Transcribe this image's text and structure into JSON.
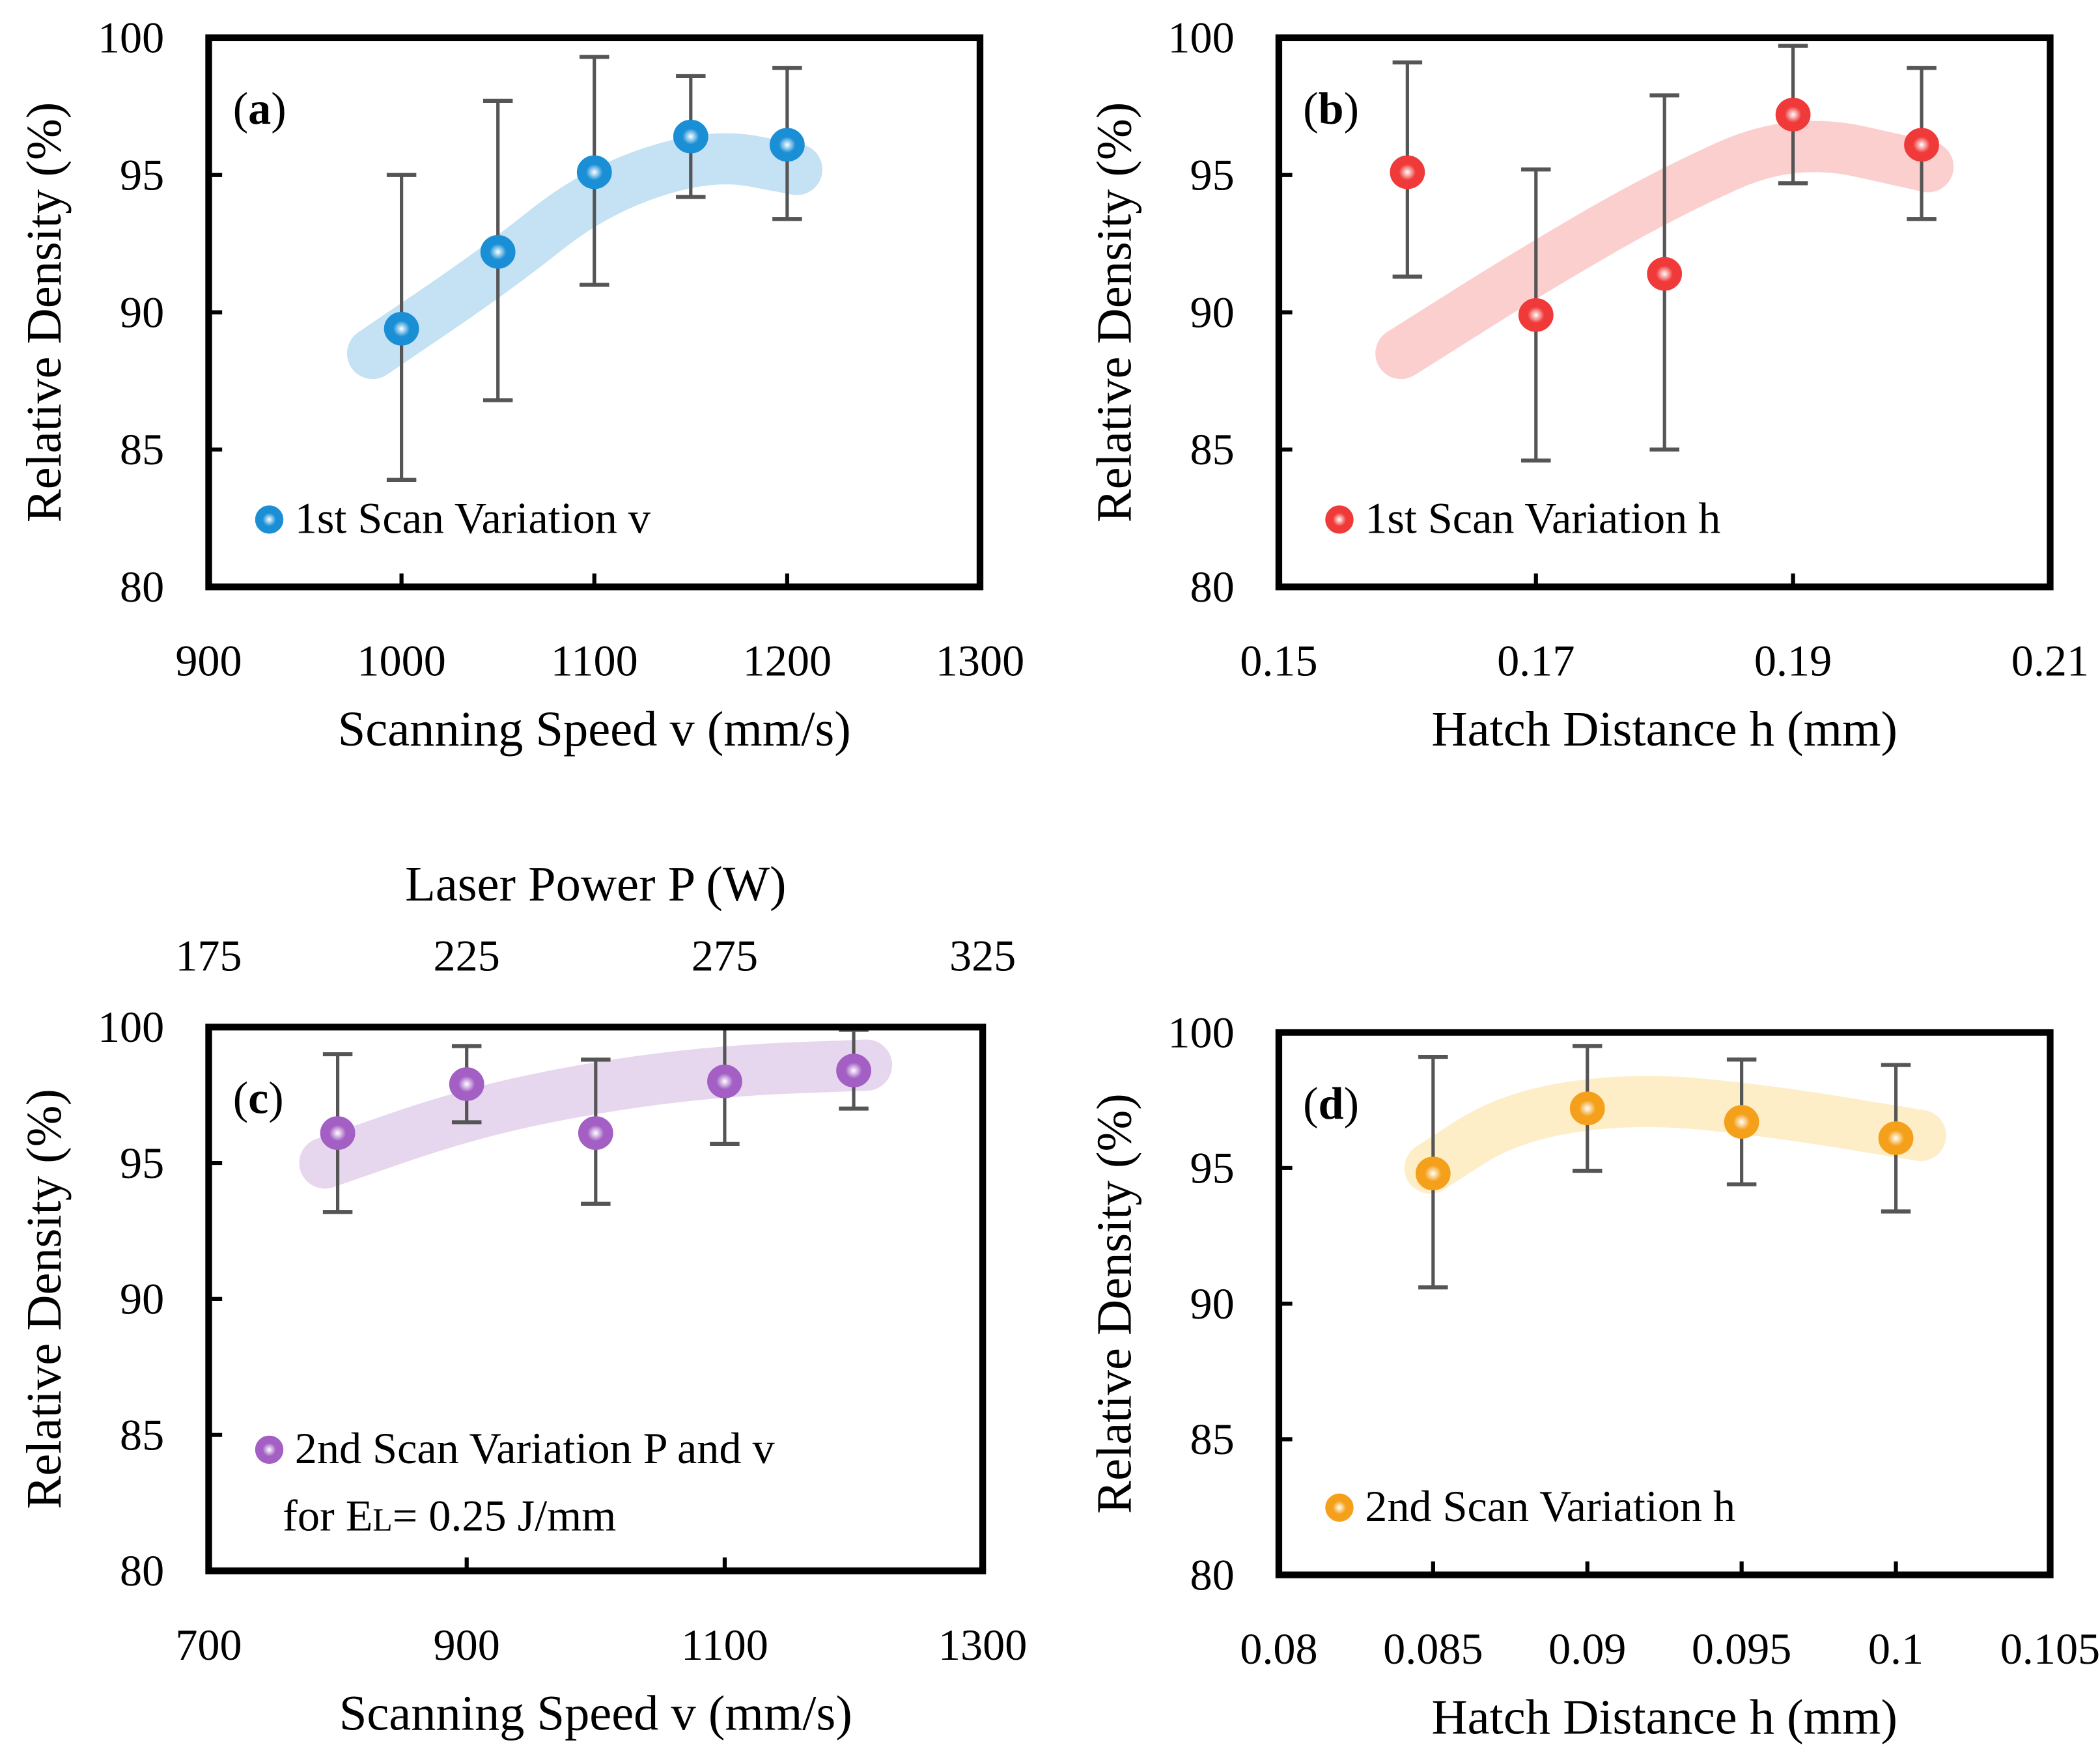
{
  "chart_data": [
    {
      "type": "scatter",
      "panel_label": "(a)",
      "panel_letter": "a",
      "xlabel": "Scanning Speed v (mm/s)",
      "ylabel": "Relative Density (%)",
      "xlim": [
        900,
        1300
      ],
      "xticks": [
        900,
        1000,
        1100,
        1200,
        1300
      ],
      "ylim": [
        80,
        100
      ],
      "yticks": [
        80,
        85,
        90,
        95,
        100
      ],
      "legend": [
        "1st Scan Variation v"
      ],
      "legend_placement": "bottom-left",
      "color": "#1a8fd6",
      "band_color": "#c4e2f4",
      "x": [
        1000,
        1050,
        1100,
        1150,
        1200
      ],
      "y": [
        89.4,
        92.2,
        95.1,
        96.4,
        96.1
      ],
      "err_low": [
        83.9,
        86.8,
        91.0,
        94.2,
        93.4
      ],
      "err_high": [
        95.0,
        97.7,
        99.3,
        98.6,
        98.9
      ],
      "trend": [
        [
          985,
          88.5
        ],
        [
          1050,
          91.6
        ],
        [
          1100,
          94.4
        ],
        [
          1160,
          95.8
        ],
        [
          1205,
          95.2
        ]
      ]
    },
    {
      "type": "scatter",
      "panel_label": "(b)",
      "panel_letter": "b",
      "xlabel": "Hatch Distance h (mm)",
      "ylabel": "Relative Density (%)",
      "xlim": [
        0.15,
        0.21
      ],
      "xticks": [
        0.15,
        0.17,
        0.19,
        0.21
      ],
      "ylim": [
        80,
        100
      ],
      "yticks": [
        80,
        85,
        90,
        95,
        100
      ],
      "legend": [
        "1st Scan Variation h"
      ],
      "legend_placement": "bottom-left",
      "color": "#f03a3a",
      "band_color": "#fccfcf",
      "x": [
        0.16,
        0.17,
        0.18,
        0.19,
        0.2
      ],
      "y": [
        95.1,
        89.9,
        91.4,
        97.2,
        96.1
      ],
      "err_low": [
        91.3,
        84.6,
        85.0,
        94.7,
        93.4
      ],
      "err_high": [
        99.1,
        95.2,
        97.9,
        99.7,
        98.9
      ],
      "trend": [
        [
          0.1595,
          88.5
        ],
        [
          0.17,
          91.6
        ],
        [
          0.18,
          94.3
        ],
        [
          0.19,
          96.4
        ],
        [
          0.2005,
          95.3
        ]
      ]
    },
    {
      "type": "scatter",
      "panel_label": "(c)",
      "panel_letter": "c",
      "xlabel": "Scanning Speed v (mm/s)",
      "ylabel": "Relative Density (%)",
      "x2label": "Laser Power P (W)",
      "xlim": [
        700,
        1300
      ],
      "xticks": [
        700,
        900,
        1100,
        1300
      ],
      "x2lim": [
        175,
        325
      ],
      "x2ticks": [
        175,
        225,
        275,
        325
      ],
      "ylim": [
        80,
        100
      ],
      "yticks": [
        80,
        85,
        90,
        95,
        100
      ],
      "legend": [
        "2nd Scan Variation P and v"
      ],
      "legend_line2_prefix": "for E",
      "legend_line2_sub": "L",
      "legend_line2_suffix": "= 0.25 J/mm",
      "legend_placement": "bottom-left",
      "color": "#a35fc4",
      "band_color": "#e6d7ee",
      "x": [
        800,
        900,
        1000,
        1100,
        1200
      ],
      "y": [
        96.1,
        97.9,
        96.1,
        98.0,
        98.4
      ],
      "err_low": [
        93.2,
        96.5,
        93.5,
        95.7,
        97.0
      ],
      "err_high": [
        99.0,
        99.3,
        98.8,
        100.0,
        99.9
      ],
      "trend": [
        [
          790,
          95.0
        ],
        [
          900,
          96.8
        ],
        [
          1000,
          97.8
        ],
        [
          1100,
          98.4
        ],
        [
          1210,
          98.6
        ]
      ]
    },
    {
      "type": "scatter",
      "panel_label": "(d)",
      "panel_letter": "d",
      "xlabel": "Hatch Distance h (mm)",
      "ylabel": "Relative Density (%)",
      "xlim": [
        0.08,
        0.105
      ],
      "xticks": [
        0.08,
        0.085,
        0.09,
        0.095,
        0.1,
        0.105
      ],
      "ylim": [
        80,
        100
      ],
      "yticks": [
        80,
        85,
        90,
        95,
        100
      ],
      "legend": [
        "2nd Scan Variation h"
      ],
      "legend_placement": "bottom-left",
      "color": "#f5a01a",
      "band_color": "#fdeec8",
      "x": [
        0.085,
        0.09,
        0.095,
        0.1
      ],
      "y": [
        94.8,
        97.2,
        96.7,
        96.1
      ],
      "err_low": [
        90.6,
        94.9,
        94.4,
        93.4
      ],
      "err_high": [
        99.1,
        99.5,
        99.0,
        98.8
      ],
      "trend": [
        [
          0.0849,
          95.0
        ],
        [
          0.0875,
          96.9
        ],
        [
          0.0915,
          97.6
        ],
        [
          0.096,
          97.1
        ],
        [
          0.1008,
          96.2
        ]
      ]
    }
  ]
}
